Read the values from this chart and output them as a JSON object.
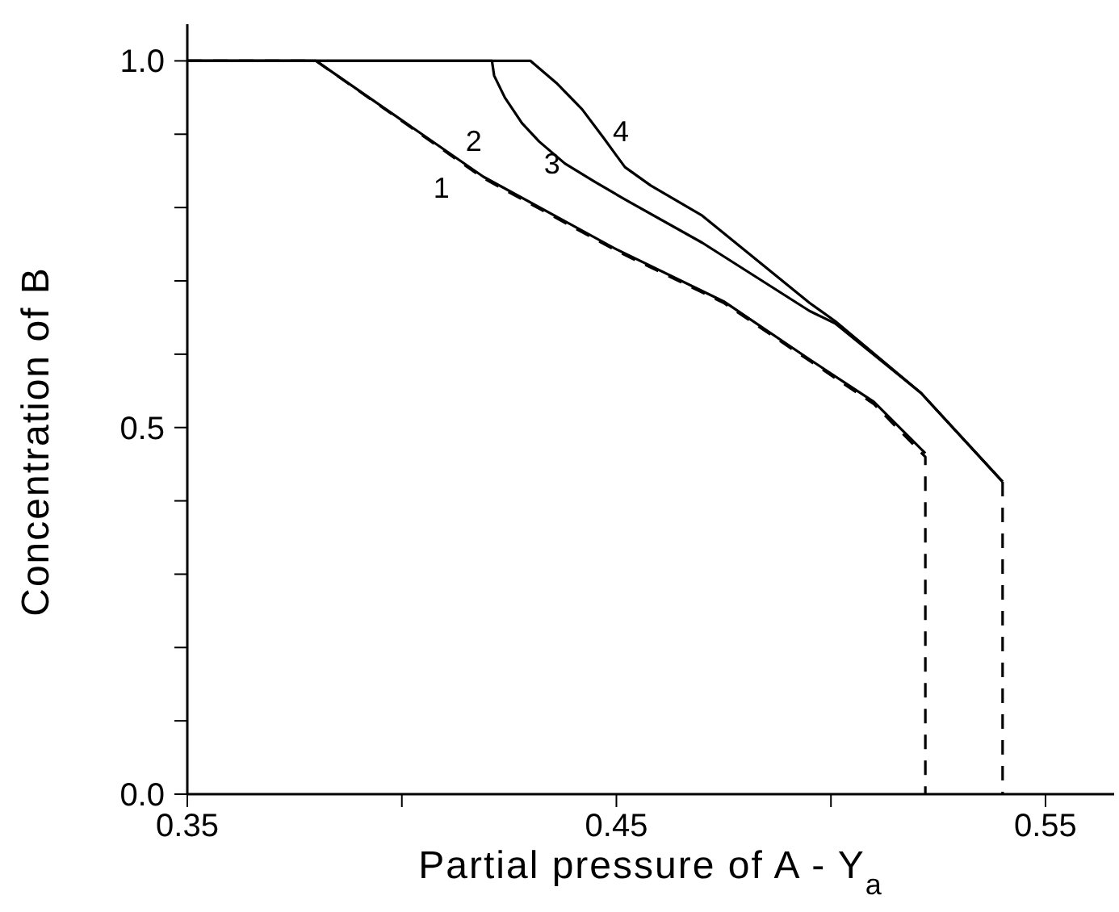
{
  "chart_data": {
    "type": "line",
    "xlabel": "Partial pressure of A - Y$_{a}$",
    "ylabel": "Concentration of B",
    "xlim": [
      0.35,
      0.566
    ],
    "ylim": [
      0,
      1.05
    ],
    "xticks": [
      {
        "value": 0.35,
        "label": "0.35"
      },
      {
        "value": 0.4,
        "label": null
      },
      {
        "value": 0.45,
        "label": "0.45"
      },
      {
        "value": 0.5,
        "label": null
      },
      {
        "value": 0.55,
        "label": "0.55"
      }
    ],
    "yticks": [
      {
        "value": 0,
        "label": "0.0"
      },
      {
        "value": 0.1,
        "label": null
      },
      {
        "value": 0.2,
        "label": null
      },
      {
        "value": 0.3,
        "label": null
      },
      {
        "value": 0.4,
        "label": null
      },
      {
        "value": 0.5,
        "label": "0.5"
      },
      {
        "value": 0.6,
        "label": null
      },
      {
        "value": 0.7,
        "label": null
      },
      {
        "value": 0.8,
        "label": null
      },
      {
        "value": 0.9,
        "label": null
      },
      {
        "value": 1,
        "label": "1.0"
      }
    ],
    "series": [
      {
        "name": "1",
        "color": "#000000",
        "line_style": "dashed",
        "x": [
          0.35,
          0.38,
          0.419,
          0.45,
          0.475,
          0.495,
          0.51,
          0.522,
          0.522
        ],
        "values": [
          1,
          1,
          0.84,
          0.741,
          0.67,
          0.591,
          0.532,
          0.46,
          0
        ]
      },
      {
        "name": "2",
        "color": "#000000",
        "line_style": "solid",
        "x": [
          0.35,
          0.38,
          0.419,
          0.45,
          0.475,
          0.495,
          0.51,
          0.522
        ],
        "values": [
          1,
          1,
          0.842,
          0.743,
          0.672,
          0.593,
          0.535,
          0.465
        ]
      },
      {
        "name": "3",
        "color": "#000000",
        "line_style": "solid",
        "x": [
          0.35,
          0.421,
          0.4215,
          0.424,
          0.428,
          0.432,
          0.438,
          0.445,
          0.452,
          0.47,
          0.495,
          0.501,
          0.521,
          0.54
        ],
        "values": [
          1,
          1,
          0.98,
          0.95,
          0.915,
          0.89,
          0.86,
          0.835,
          0.811,
          0.752,
          0.659,
          0.642,
          0.547,
          0.426
        ]
      },
      {
        "name": "4",
        "color": "#000000",
        "line_style": "solid",
        "x": [
          0.35,
          0.43,
          0.436,
          0.442,
          0.447,
          0.452,
          0.458,
          0.47,
          0.495,
          0.501,
          0.521,
          0.54
        ],
        "values": [
          1,
          1,
          0.97,
          0.934,
          0.895,
          0.855,
          0.83,
          0.789,
          0.67,
          0.645,
          0.547,
          0.426
        ]
      },
      {
        "color": "#000000",
        "line_style": "dashed",
        "x": [
          0.54,
          0.54
        ],
        "values": [
          0.426,
          0
        ]
      }
    ]
  }
}
